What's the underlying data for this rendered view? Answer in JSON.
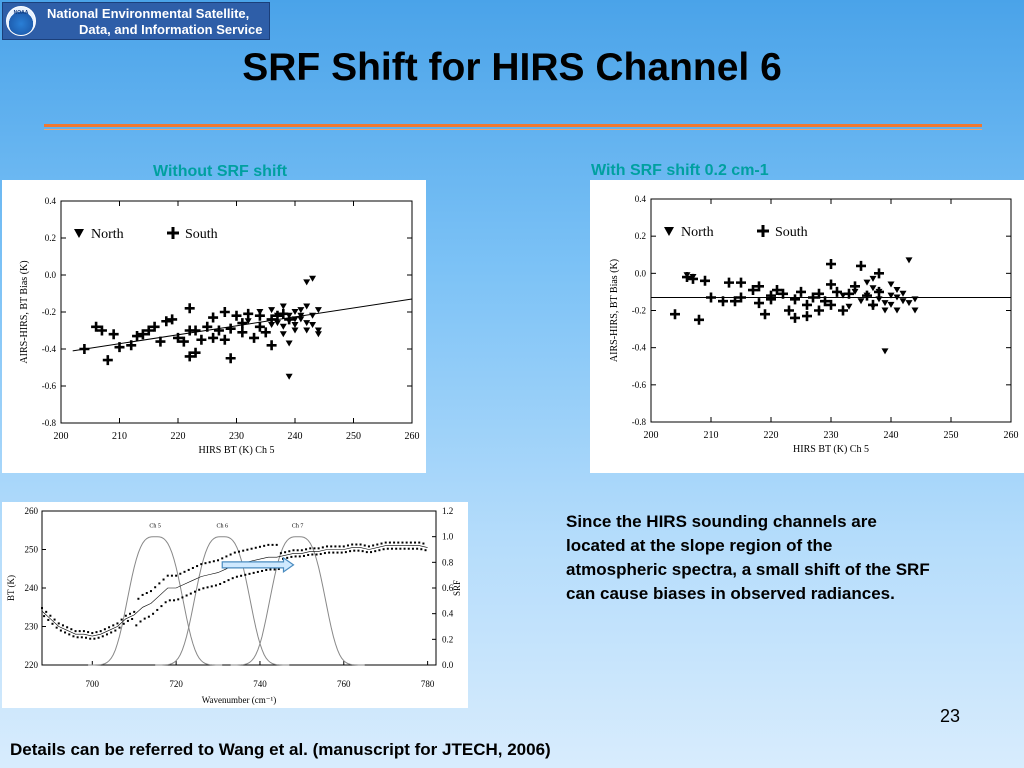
{
  "banner": {
    "logo_text": "NOAA",
    "line1": "National Environmental Satellite,",
    "line2": "Data, and Information Service"
  },
  "title": "SRF Shift for HIRS Channel 6",
  "accent_color": "#f07830",
  "subtitle_color": "#00a0a0",
  "left_plot_title": "Without SRF shift",
  "right_plot_title": "With SRF shift 0.2 cm-1",
  "paragraph": "Since the HIRS sounding channels are located at the slope region of the atmospheric spectra, a small shift of the SRF can cause biases in observed radiances.",
  "page_number": "23",
  "footer": "Details can be referred to Wang et al. (manuscript for JTECH, 2006)",
  "chart_data": [
    {
      "type": "scatter",
      "xlabel": "HIRS BT (K) Ch 5",
      "ylabel": "AIRS-HIRS, BT Bias (K)",
      "xlim": [
        200,
        260
      ],
      "ylim": [
        -0.8,
        0.4
      ],
      "x_ticks": [
        "200",
        "210",
        "220",
        "230",
        "240",
        "250",
        "260"
      ],
      "y_ticks": [
        "0.4",
        "0.2",
        "0.0",
        "-0.2",
        "-0.4",
        "-0.6",
        "-0.8"
      ],
      "legend": "top-left",
      "fit_line": [
        [
          202,
          -0.41
        ],
        [
          260,
          -0.13
        ]
      ],
      "series": [
        {
          "name": "North",
          "marker": "triangle-down",
          "points": [
            [
              232,
              -0.25
            ],
            [
              234,
              -0.2
            ],
            [
              236,
              -0.19
            ],
            [
              237,
              -0.26
            ],
            [
              237,
              -0.22
            ],
            [
              238,
              -0.28
            ],
            [
              238,
              -0.17
            ],
            [
              239,
              -0.25
            ],
            [
              239,
              -0.22
            ],
            [
              240,
              -0.2
            ],
            [
              240,
              -0.27
            ],
            [
              240,
              -0.3
            ],
            [
              241,
              -0.24
            ],
            [
              241,
              -0.19
            ],
            [
              241,
              -0.22
            ],
            [
              242,
              -0.26
            ],
            [
              242,
              -0.17
            ],
            [
              242,
              -0.3
            ],
            [
              243,
              -0.02
            ],
            [
              243,
              -0.22
            ],
            [
              243,
              -0.27
            ],
            [
              244,
              -0.19
            ],
            [
              244,
              -0.3
            ],
            [
              239,
              -0.37
            ],
            [
              239,
              -0.55
            ],
            [
              242,
              -0.04
            ],
            [
              238,
              -0.32
            ],
            [
              240,
              -0.24
            ],
            [
              236,
              -0.27
            ],
            [
              244,
              -0.32
            ]
          ]
        },
        {
          "name": "South",
          "marker": "plus",
          "points": [
            [
              204,
              -0.4
            ],
            [
              206,
              -0.28
            ],
            [
              207,
              -0.3
            ],
            [
              208,
              -0.46
            ],
            [
              209,
              -0.32
            ],
            [
              210,
              -0.39
            ],
            [
              212,
              -0.38
            ],
            [
              213,
              -0.33
            ],
            [
              214,
              -0.32
            ],
            [
              215,
              -0.3
            ],
            [
              216,
              -0.28
            ],
            [
              217,
              -0.36
            ],
            [
              218,
              -0.25
            ],
            [
              219,
              -0.24
            ],
            [
              220,
              -0.34
            ],
            [
              221,
              -0.36
            ],
            [
              222,
              -0.3
            ],
            [
              222,
              -0.18
            ],
            [
              223,
              -0.3
            ],
            [
              223,
              -0.42
            ],
            [
              224,
              -0.35
            ],
            [
              225,
              -0.28
            ],
            [
              226,
              -0.34
            ],
            [
              226,
              -0.23
            ],
            [
              227,
              -0.3
            ],
            [
              228,
              -0.35
            ],
            [
              228,
              -0.2
            ],
            [
              229,
              -0.29
            ],
            [
              229,
              -0.45
            ],
            [
              230,
              -0.22
            ],
            [
              231,
              -0.31
            ],
            [
              231,
              -0.26
            ],
            [
              232,
              -0.21
            ],
            [
              233,
              -0.34
            ],
            [
              234,
              -0.28
            ],
            [
              234,
              -0.22
            ],
            [
              235,
              -0.31
            ],
            [
              236,
              -0.24
            ],
            [
              236,
              -0.38
            ],
            [
              237,
              -0.22
            ],
            [
              238,
              -0.21
            ],
            [
              239,
              -0.24
            ],
            [
              222,
              -0.44
            ]
          ]
        }
      ]
    },
    {
      "type": "scatter",
      "xlabel": "HIRS BT (K) Ch 5",
      "ylabel": "AIRS-HIRS, BT Bias (K)",
      "xlim": [
        200,
        260
      ],
      "ylim": [
        -0.8,
        0.4
      ],
      "x_ticks": [
        "200",
        "210",
        "220",
        "230",
        "240",
        "250",
        "260"
      ],
      "y_ticks": [
        "0.4",
        "0.2",
        "0.0",
        "-0.2",
        "-0.4",
        "-0.6",
        "-0.8"
      ],
      "legend": "top-left",
      "fit_line": [
        [
          200,
          -0.13
        ],
        [
          260,
          -0.13
        ]
      ],
      "series": [
        {
          "name": "North",
          "marker": "triangle-down",
          "points": [
            [
              206,
              -0.01
            ],
            [
              207,
              -0.02
            ],
            [
              232,
              -0.12
            ],
            [
              234,
              -0.1
            ],
            [
              235,
              -0.15
            ],
            [
              236,
              -0.12
            ],
            [
              237,
              -0.08
            ],
            [
              237,
              -0.18
            ],
            [
              238,
              -0.14
            ],
            [
              238,
              -0.1
            ],
            [
              239,
              -0.16
            ],
            [
              239,
              -0.2
            ],
            [
              240,
              -0.12
            ],
            [
              240,
              -0.17
            ],
            [
              241,
              -0.13
            ],
            [
              241,
              -0.2
            ],
            [
              242,
              -0.15
            ],
            [
              242,
              -0.11
            ],
            [
              243,
              -0.16
            ],
            [
              243,
              0.07
            ],
            [
              244,
              -0.2
            ],
            [
              244,
              -0.14
            ],
            [
              239,
              -0.42
            ],
            [
              237,
              -0.03
            ],
            [
              240,
              -0.06
            ],
            [
              233,
              -0.18
            ],
            [
              236,
              -0.05
            ],
            [
              241,
              -0.09
            ]
          ]
        },
        {
          "name": "South",
          "marker": "plus",
          "points": [
            [
              204,
              -0.22
            ],
            [
              206,
              -0.02
            ],
            [
              207,
              -0.03
            ],
            [
              208,
              -0.25
            ],
            [
              209,
              -0.04
            ],
            [
              210,
              -0.13
            ],
            [
              212,
              -0.15
            ],
            [
              213,
              -0.05
            ],
            [
              214,
              -0.15
            ],
            [
              215,
              -0.05
            ],
            [
              215,
              -0.13
            ],
            [
              217,
              -0.09
            ],
            [
              218,
              -0.07
            ],
            [
              218,
              -0.16
            ],
            [
              219,
              -0.22
            ],
            [
              220,
              -0.14
            ],
            [
              221,
              -0.09
            ],
            [
              222,
              -0.11
            ],
            [
              223,
              -0.2
            ],
            [
              224,
              -0.14
            ],
            [
              224,
              -0.24
            ],
            [
              225,
              -0.1
            ],
            [
              226,
              -0.17
            ],
            [
              226,
              -0.23
            ],
            [
              227,
              -0.13
            ],
            [
              228,
              -0.2
            ],
            [
              228,
              -0.11
            ],
            [
              229,
              -0.15
            ],
            [
              230,
              -0.06
            ],
            [
              230,
              -0.17
            ],
            [
              231,
              -0.1
            ],
            [
              232,
              -0.2
            ],
            [
              233,
              -0.11
            ],
            [
              234,
              -0.07
            ],
            [
              235,
              0.04
            ],
            [
              236,
              -0.12
            ],
            [
              237,
              -0.17
            ],
            [
              238,
              -0.1
            ],
            [
              238,
              0.0
            ],
            [
              230,
              0.05
            ],
            [
              220,
              -0.12
            ]
          ]
        }
      ]
    },
    {
      "type": "line",
      "xlabel": "Wavenumber  (cm⁻¹)",
      "ylabel": "BT (K)",
      "y2label": "SRF",
      "xlim": [
        688,
        782
      ],
      "ylim": [
        220,
        260
      ],
      "y2lim": [
        0.0,
        1.2
      ],
      "x_ticks": [
        "700",
        "720",
        "740",
        "760",
        "780"
      ],
      "y_ticks": [
        "260",
        "250",
        "240",
        "230",
        "220"
      ],
      "y2_ticks": [
        "1.2",
        "1.0",
        "0.8",
        "0.6",
        "0.4",
        "0.2",
        "0.0"
      ],
      "srf_labels": [
        "Ch 5",
        "Ch 6",
        "Ch 7"
      ],
      "srf_centers": [
        715,
        731,
        749
      ],
      "arrow": [
        [
          731,
          0.78
        ],
        [
          748,
          0.78
        ]
      ],
      "spectrum": [
        [
          688,
          234
        ],
        [
          690,
          232
        ],
        [
          692,
          230
        ],
        [
          694,
          229
        ],
        [
          696,
          228
        ],
        [
          698,
          228
        ],
        [
          700,
          227.5
        ],
        [
          702,
          228
        ],
        [
          704,
          229
        ],
        [
          706,
          230
        ],
        [
          708,
          232
        ],
        [
          710,
          233
        ],
        [
          712,
          235
        ],
        [
          714,
          236
        ],
        [
          716,
          238
        ],
        [
          718,
          240
        ],
        [
          720,
          240
        ],
        [
          722,
          241
        ],
        [
          724,
          242
        ],
        [
          726,
          243
        ],
        [
          728,
          243.5
        ],
        [
          730,
          244
        ],
        [
          732,
          245
        ],
        [
          734,
          246
        ],
        [
          736,
          246.5
        ],
        [
          738,
          247
        ],
        [
          740,
          247.5
        ],
        [
          742,
          248
        ],
        [
          744,
          248
        ],
        [
          746,
          248.5
        ],
        [
          748,
          249
        ],
        [
          750,
          249
        ],
        [
          752,
          249.5
        ],
        [
          754,
          249.5
        ],
        [
          756,
          250
        ],
        [
          758,
          250
        ],
        [
          760,
          250
        ],
        [
          762,
          250.5
        ],
        [
          764,
          250.5
        ],
        [
          766,
          250
        ],
        [
          768,
          250.5
        ],
        [
          770,
          251
        ],
        [
          772,
          251
        ],
        [
          774,
          251
        ],
        [
          776,
          251
        ],
        [
          778,
          251
        ],
        [
          780,
          250.5
        ]
      ]
    }
  ]
}
